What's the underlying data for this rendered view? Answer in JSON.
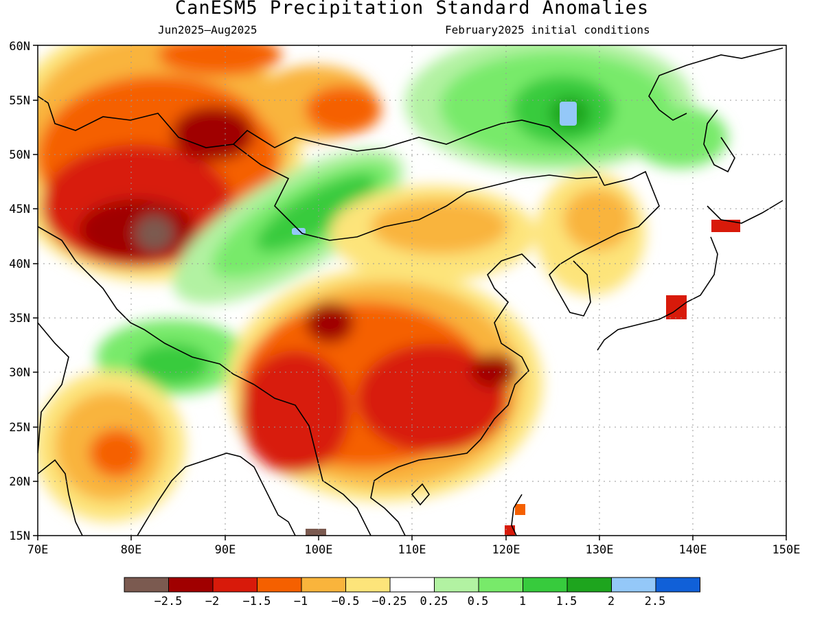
{
  "title": "CanESM5 Precipitation Standard Anomalies",
  "subtitle_left": "Jun2025–Aug2025",
  "subtitle_right": "February2025 initial conditions",
  "map": {
    "lon_range": [
      70,
      150
    ],
    "lat_range": [
      15,
      60
    ],
    "lon_ticks": [
      "70E",
      "80E",
      "90E",
      "100E",
      "110E",
      "120E",
      "130E",
      "140E",
      "150E"
    ],
    "lat_ticks": [
      "60N",
      "55N",
      "50N",
      "45N",
      "40N",
      "35N",
      "30N",
      "25N",
      "20N",
      "15N"
    ],
    "grid": "dotted"
  },
  "colorbar": {
    "colors": [
      "#7b5a50",
      "#a00000",
      "#d81a0a",
      "#f56000",
      "#f9b43c",
      "#fde47a",
      "#ffffff",
      "#b2f2a2",
      "#78ea6a",
      "#37cb3d",
      "#1ea51e",
      "#94c8f8",
      "#1060d8"
    ],
    "labels": [
      "−2.5",
      "−2",
      "−1.5",
      "−1",
      "−0.5",
      "−0.25",
      "0.25",
      "0.5",
      "1",
      "1.5",
      "2",
      "2.5"
    ]
  }
}
